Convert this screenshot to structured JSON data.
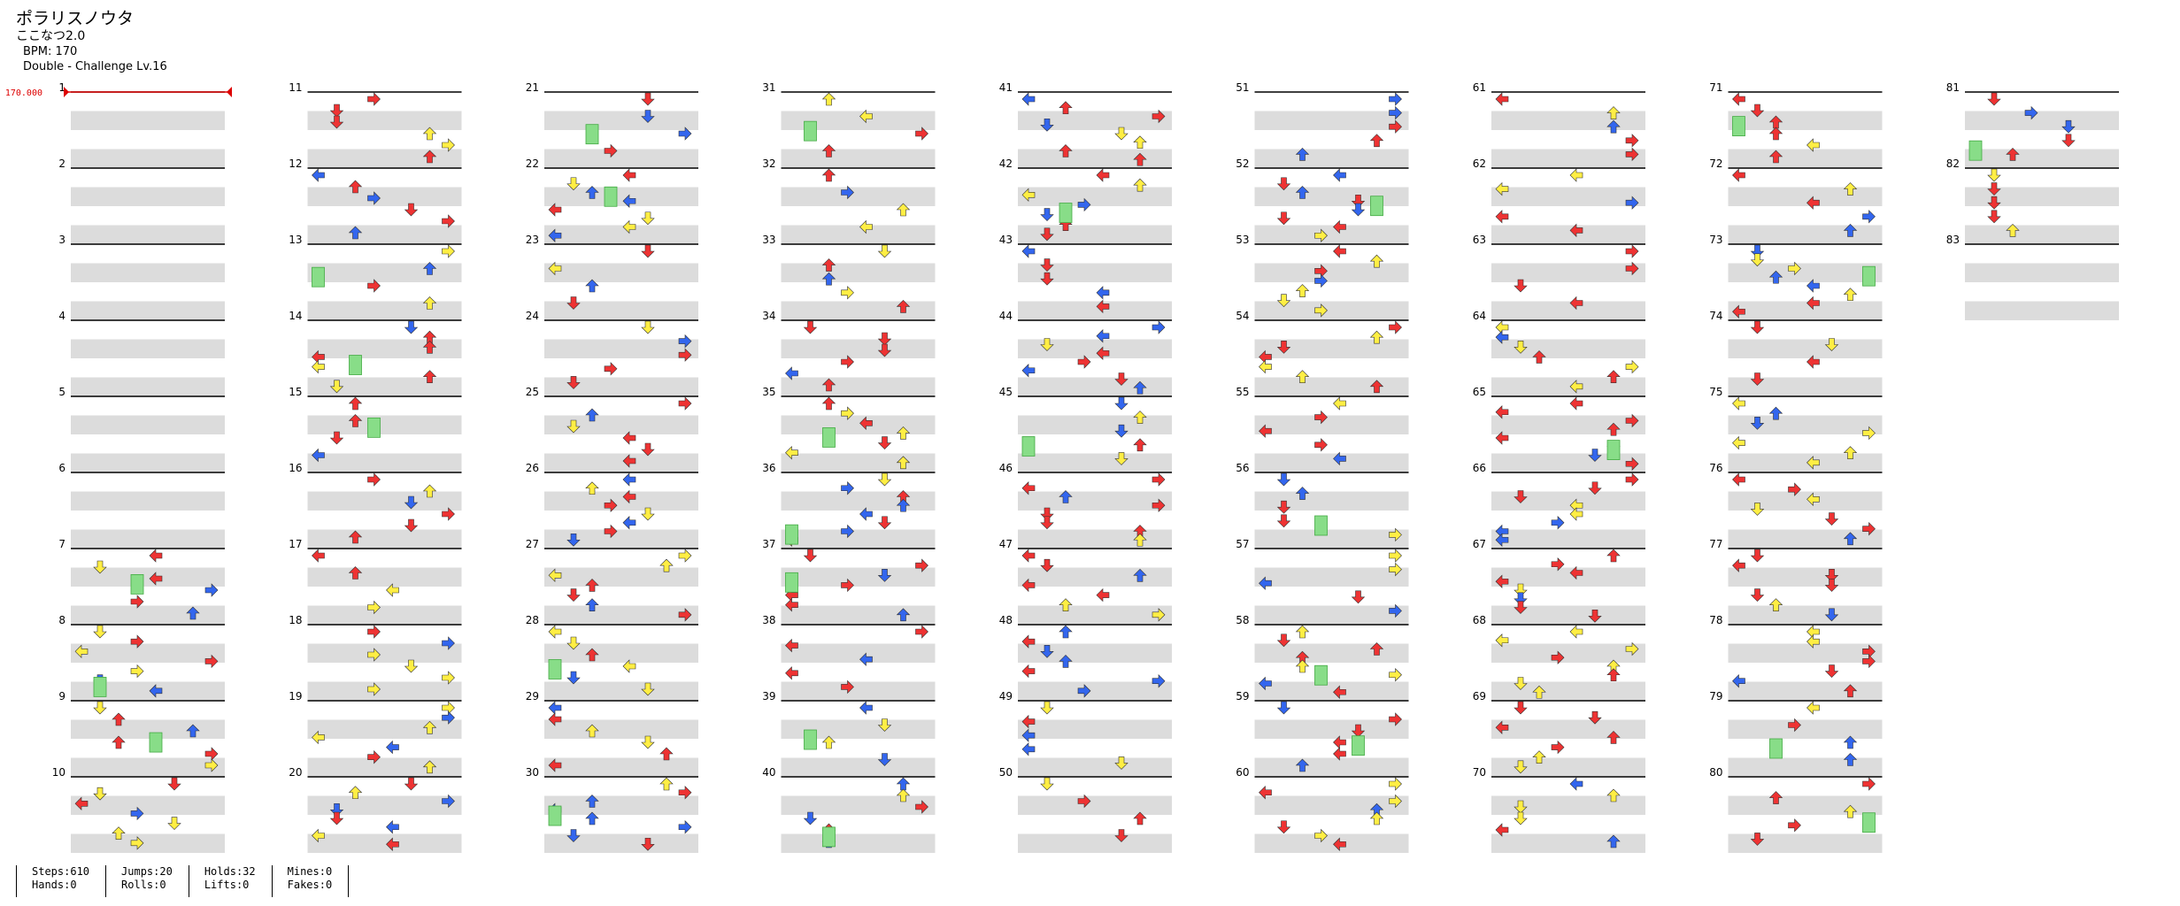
{
  "song": {
    "title": "ポラリスノウタ",
    "artist": "ここなつ2.0",
    "bpm_text": "BPM: 170",
    "chart_text": "Double - Challenge  Lv.16"
  },
  "bpm_marker": "170.000",
  "measures": [
    1,
    2,
    3,
    4,
    5,
    6,
    7,
    8,
    9,
    10,
    11,
    12,
    13,
    14,
    15,
    16,
    17,
    18,
    19,
    20,
    21,
    22,
    23,
    24,
    25,
    26,
    27,
    28,
    29,
    30,
    31,
    32,
    33,
    34,
    35,
    36,
    37,
    38,
    39,
    40,
    41,
    42,
    43,
    44,
    45,
    46,
    47,
    48,
    49,
    50,
    51,
    52,
    53,
    54,
    55,
    56,
    57,
    58,
    59,
    60,
    61,
    62,
    63,
    64,
    65,
    66,
    67,
    68,
    69,
    70,
    71,
    72,
    73,
    74,
    75,
    76,
    77,
    78,
    79,
    80,
    81,
    82,
    83
  ],
  "stats": [
    [
      "Steps:610",
      "Hands:0"
    ],
    [
      "Jumps:20",
      "Rolls:0"
    ],
    [
      "Holds:32",
      "Lifts:0"
    ],
    [
      "Mines:0",
      "Fakes:0"
    ]
  ],
  "colors": {
    "red": "#ee3333",
    "blue": "#3366ee",
    "yellow": "#ffee44",
    "green": "#88dd88",
    "purple": "#aa33ee",
    "band": "#dcdcdc",
    "bpm": "#dd0000"
  },
  "chart_data": {
    "type": "step-chart",
    "style": "Double",
    "difficulty": "Challenge",
    "level": 16,
    "bpm": 170,
    "measure_count": 83,
    "steps": 610,
    "jumps": 20,
    "holds": 32,
    "mines": 0,
    "hands": 0,
    "rolls": 0,
    "lifts": 0,
    "fakes": 0
  }
}
